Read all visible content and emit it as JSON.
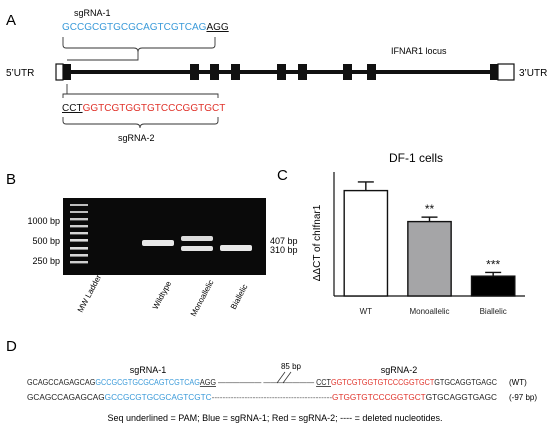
{
  "panels": {
    "a": "A",
    "b": "B",
    "c": "C",
    "d": "D"
  },
  "colors": {
    "blue": "#3a9ad9",
    "red": "#e0332b",
    "ink": "#111111",
    "gel_bg": "#0a0a0a",
    "band": "#e8e8e8",
    "bar_grey": "#a5a5a7"
  },
  "panel_a": {
    "sgrna1_label": "sgRNA-1",
    "sgrna1_seq": "GCCGCGTGCGCAGTCGTCAG",
    "sgrna1_pam": "AGG",
    "sgrna2_label": "sgRNA-2",
    "sgrna2_pam": "CCT",
    "sgrna2_seq": "GGTCGTGGTGTCCCGGTGCT",
    "utr5": "5’UTR",
    "utr3": "3’UTR",
    "locus": "IFNAR1 locus"
  },
  "panel_b": {
    "ladder_labels": [
      "1000 bp",
      "500 bp",
      "250 bp"
    ],
    "band_labels": [
      "407 bp",
      "310 bp"
    ],
    "lane_labels": [
      "MW Ladder",
      "Wildtype",
      "Monoallelic",
      "Biallelic"
    ]
  },
  "chart_data": {
    "type": "bar",
    "title": "DF-1 cells",
    "ylabel": "ΔΔCT of chIfnar1",
    "categories": [
      "WT",
      "Monoallelic",
      "Biallelic"
    ],
    "values": [
      4.25,
      3.0,
      0.8
    ],
    "errors": [
      0.35,
      0.18,
      0.15
    ],
    "significance": [
      "",
      "**",
      "***"
    ],
    "ylim": [
      0,
      5
    ],
    "bar_colors": [
      "#ffffff",
      "#a5a5a7",
      "#000000"
    ]
  },
  "panel_d": {
    "sgrna1_label": "sgRNA-1",
    "sgrna2_label": "sgRNA-2",
    "gap_label": "85 bp",
    "wt": {
      "prefix": "GCAGCCAGAGCAG",
      "sg1": "GCCGCGTGCGCAGTCGTCAG",
      "pam1": "AGG",
      "pam2": "CCT",
      "sg2": "GGTCGTGGTGTCCCGGTGCT",
      "suffix": "GTGCAGGTGAGC",
      "tag": "(WT)"
    },
    "mut": {
      "prefix": "GCAGCCAGAGCAG",
      "sg1": "GCCGCGTGCGCAGTCGTC",
      "dashes": "--------------------------------------------",
      "sg2": "GTGGTGTCCCGGTGCT",
      "suffix": "GTGCAGGTGAGC",
      "tag": "(-97 bp)"
    },
    "legend": "Seq underlined = PAM; Blue = sgRNA-1; Red = sgRNA-2; ---- = deleted nucleotides."
  }
}
